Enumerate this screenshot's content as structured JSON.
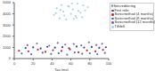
{
  "chart_data": {
    "type": "scatter",
    "xlabel": "Tau (ms)",
    "xlim": [
      0,
      100
    ],
    "xticks": [
      0,
      20,
      40,
      60,
      80,
      100
    ],
    "ylim": [
      0,
      5000
    ],
    "yticks": [
      0,
      1000,
      2000,
      3000,
      4000,
      5000
    ],
    "grid": false,
    "legend": "upper right",
    "legend_title": "Eftercreditering",
    "series": [
      {
        "name": "First mile",
        "color": "#2b4a9b",
        "x": [
          12,
          20,
          28,
          35,
          43,
          51,
          58,
          66,
          74,
          82,
          90,
          97
        ],
        "y": [
          950,
          1000,
          900,
          1050,
          980,
          1020,
          930,
          1080,
          990,
          1040,
          960,
          1010
        ]
      },
      {
        "name": "Sonicmethod (4 months)",
        "color": "#d62728",
        "x": [
          5,
          15,
          25,
          33,
          41,
          50,
          59,
          68,
          77,
          86,
          94
        ],
        "y": [
          700,
          650,
          800,
          600,
          750,
          680,
          820,
          560,
          720,
          640,
          780
        ]
      },
      {
        "name": "Sonicmethod (8 months)",
        "color": "#4a6fd1",
        "x": [
          8,
          18,
          30,
          39,
          47,
          56,
          64,
          72,
          80,
          88,
          96
        ],
        "y": [
          450,
          380,
          520,
          410,
          480,
          350,
          540,
          430,
          470,
          390,
          500
        ]
      },
      {
        "name": "Sonicmethod (12 months)",
        "color": "#8a63b5",
        "x": [
          14,
          24,
          37,
          46,
          54,
          63,
          71,
          79,
          87,
          93
        ],
        "y": [
          1200,
          1350,
          1150,
          1400,
          1250,
          1300,
          1180,
          1450,
          1220,
          1320
        ]
      },
      {
        "name": "Tilldelt",
        "color": "#a8d8ea",
        "x": [
          42,
          45,
          48,
          50,
          52,
          55,
          57,
          60,
          62,
          65,
          67,
          70,
          72,
          75,
          78,
          44,
          53,
          58,
          63,
          68,
          73,
          49,
          61,
          66
        ],
        "y": [
          3900,
          4500,
          3600,
          4800,
          4200,
          3500,
          4700,
          4000,
          4400,
          3800,
          4900,
          4100,
          3700,
          4300,
          4600,
          4050,
          3850,
          4650,
          3550,
          4250,
          4750,
          4350,
          4950,
          3650
        ]
      }
    ]
  }
}
